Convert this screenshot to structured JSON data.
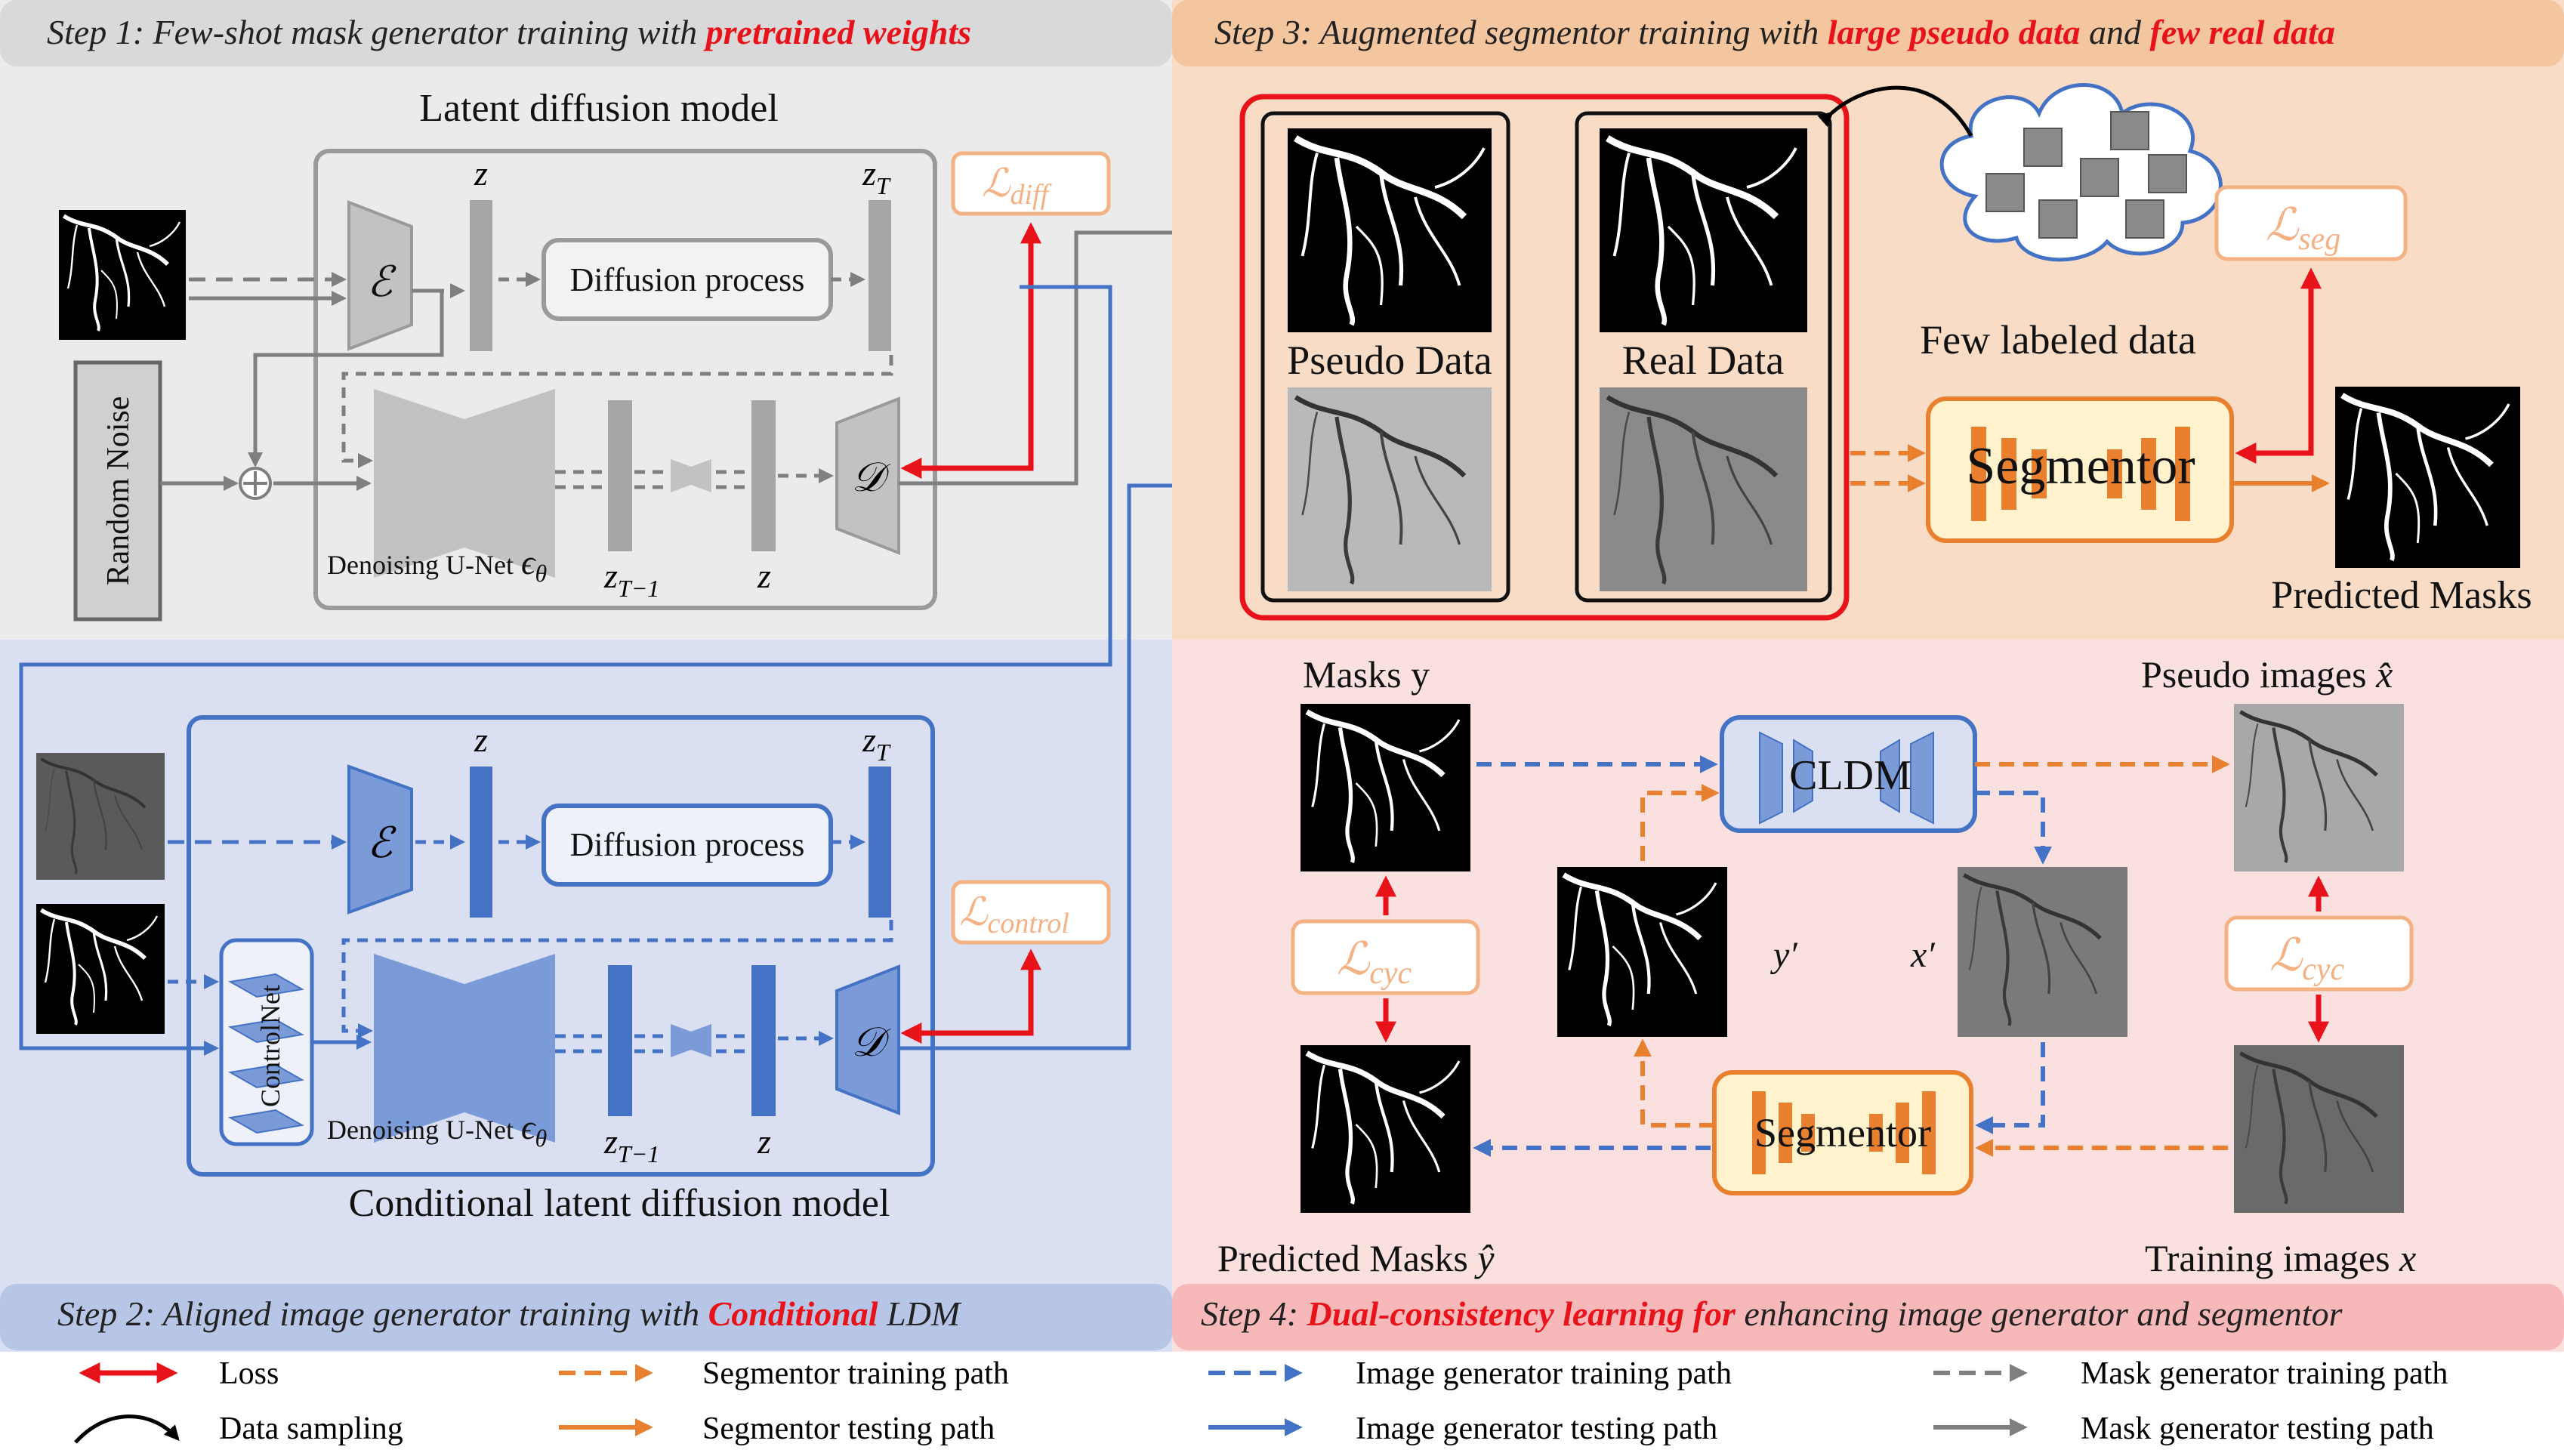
{
  "colors": {
    "red": "#e8121a",
    "orange": "#e8802f",
    "blue": "#4472c4",
    "gray": "#7f7f7f",
    "step1_bg": "#ebebeb",
    "step2_bg": "#dae0f1",
    "step3_bg": "#f9dcc5",
    "step4_bg": "#fbe0e0",
    "step1_header_bg": "#d9d9d9",
    "step2_header_bg": "#b7c6e6",
    "step3_header_bg": "#f4c6a0",
    "step4_header_bg": "#f6b8b8",
    "loss_border": "#f4b183",
    "loss_text": "#f4b183"
  },
  "icons": [
    "double-arrow-icon",
    "curved-arrow-icon",
    "dashed-arrow-icon",
    "solid-arrow-icon",
    "cloud-icon",
    "encoder-trapezoid-icon",
    "decoder-trapezoid-icon",
    "unet-hourglass-icon",
    "plus-circle-icon",
    "image-thumbnail-icon"
  ],
  "step1": {
    "header_a": "Step 1: Few-shot mask generator training with ",
    "header_b": "pretrained weights",
    "title": "Latent diffusion model",
    "encoder": "ℰ",
    "decoder": "𝒟",
    "z_top": "z",
    "zT_top": "z",
    "zT_sub": "T",
    "diffusion": "Diffusion process",
    "loss": "ℒ",
    "loss_sub": "diff",
    "random_noise": "Random Noise",
    "unet_label": "Denoising U-Net",
    "eps": "ϵ",
    "eps_sub": "θ",
    "zT1": "z",
    "zT1_sub": "T−1",
    "z_bottom": "z"
  },
  "step2": {
    "header_a": "Step 2: Aligned image generator training with ",
    "header_b": "Conditional",
    "header_c": " LDM",
    "title": "Conditional latent diffusion model",
    "encoder": "ℰ",
    "decoder": "𝒟",
    "z_top": "z",
    "zT_top": "z",
    "zT_sub": "T",
    "diffusion": "Diffusion process",
    "loss": "ℒ",
    "loss_sub": "control",
    "controlnet": "ControlNet",
    "unet_label": "Denoising U-Net",
    "eps": "ϵ",
    "eps_sub": "θ",
    "zT1": "z",
    "zT1_sub": "T−1",
    "z_bottom": "z"
  },
  "step3": {
    "header_a": "Step 3: Augmented segmentor training with ",
    "header_b": "large pseudo data",
    "header_c": " and ",
    "header_d": "few real data",
    "pseudo_data": "Pseudo Data",
    "real_data": "Real Data",
    "few_labeled": "Few labeled data",
    "segmentor": "Segmentor",
    "loss": "ℒ",
    "loss_sub": "seg",
    "predicted_masks": "Predicted Masks"
  },
  "step4": {
    "header_a": "Step 4: ",
    "header_b": "Dual-consistency learning for",
    "header_c": " enhancing image generator and segmentor",
    "masks_y": "Masks  y",
    "pseudo_images": "Pseudo images ",
    "pseudo_images_sym": "x̂",
    "cldm": "CLDM",
    "y_prime": "y′",
    "x_prime": "x′",
    "loss": "ℒ",
    "loss_sub": "cyc",
    "segmentor": "Segmentor",
    "predicted_masks": "Predicted Masks ",
    "predicted_masks_sym": "ŷ",
    "training_images": "Training images ",
    "training_images_sym": "x"
  },
  "legend": {
    "loss": "Loss",
    "data_sampling": "Data sampling",
    "seg_train": "Segmentor training path",
    "seg_test": "Segmentor testing path",
    "img_train": "Image generator training path",
    "img_test": "Image generator testing path",
    "mask_train": "Mask generator training path",
    "mask_test": "Mask generator testing path"
  }
}
